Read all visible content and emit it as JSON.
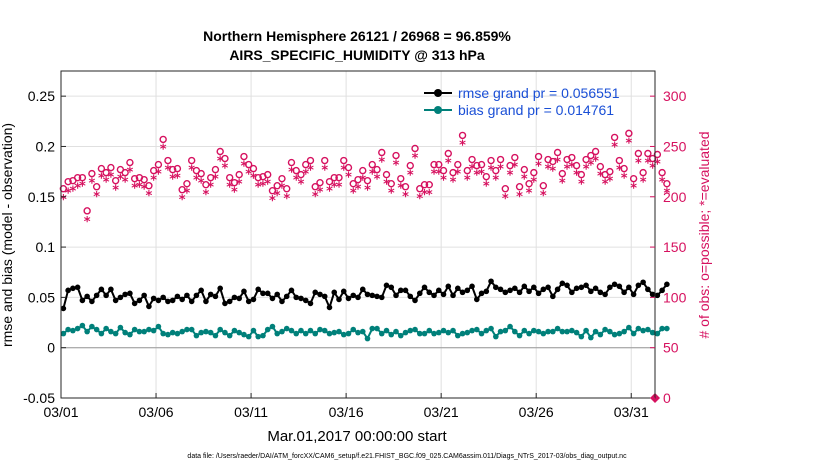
{
  "chart_data": {
    "type": "line",
    "title_line1": "Northern Hemisphere 26121 / 26968 = 96.859%",
    "title_line2": "AIRS_SPECIFIC_HUMIDITY @ 313 hPa",
    "xlabel": "Mar.01,2017 00:00:00 start",
    "ylabel_left": "rmse and bias (model - observation)",
    "ylabel_right": "# of obs: o=possible; *=evaluated",
    "footer": "data file: /Users/raeder/DAI/ATM_forcXX/CAM6_setup/f.e21.FHIST_BGC.f09_025.CAM6assim.011/Diags_NTrS_2017-03/obs_diag_output.nc",
    "x_ticks": [
      "03/01",
      "03/06",
      "03/11",
      "03/16",
      "03/21",
      "03/26",
      "03/31"
    ],
    "x_tick_days": [
      0,
      5,
      10,
      15,
      20,
      25,
      30
    ],
    "xlim": [
      0,
      31.25
    ],
    "y_left_ticks": [
      "-0.05",
      "0",
      "0.05",
      "0.1",
      "0.15",
      "0.2",
      "0.25"
    ],
    "ylim_left": [
      -0.05,
      0.275
    ],
    "y_right_ticks": [
      "0",
      "50",
      "100",
      "150",
      "200",
      "250",
      "300"
    ],
    "ylim_right": [
      0,
      325
    ],
    "legend": {
      "rmse_label": "rmse grand pr = 0.056551",
      "bias_label": "bias grand pr = 0.014761",
      "position": "top-right"
    },
    "colors": {
      "rmse": "#000000",
      "bias": "#00807a",
      "obs": "#d6115f",
      "zero_line": "#999999",
      "grid": "#e0e0e0",
      "legend_text": "#1a4fd6"
    },
    "time_step_days": 0.25,
    "series": [
      {
        "name": "rmse",
        "values": [
          0.039,
          0.057,
          0.059,
          0.06,
          0.047,
          0.051,
          0.046,
          0.052,
          0.058,
          0.052,
          0.058,
          0.047,
          0.05,
          0.053,
          0.054,
          0.044,
          0.047,
          0.052,
          0.041,
          0.049,
          0.047,
          0.05,
          0.046,
          0.047,
          0.051,
          0.048,
          0.052,
          0.046,
          0.052,
          0.057,
          0.046,
          0.053,
          0.051,
          0.059,
          0.044,
          0.046,
          0.05,
          0.049,
          0.056,
          0.046,
          0.048,
          0.058,
          0.054,
          0.054,
          0.049,
          0.053,
          0.046,
          0.051,
          0.057,
          0.05,
          0.049,
          0.047,
          0.044,
          0.055,
          0.053,
          0.051,
          0.04,
          0.055,
          0.048,
          0.056,
          0.049,
          0.052,
          0.05,
          0.058,
          0.053,
          0.052,
          0.051,
          0.05,
          0.062,
          0.06,
          0.052,
          0.057,
          0.057,
          0.051,
          0.047,
          0.054,
          0.06,
          0.055,
          0.052,
          0.057,
          0.053,
          0.061,
          0.052,
          0.059,
          0.055,
          0.057,
          0.061,
          0.048,
          0.054,
          0.056,
          0.066,
          0.06,
          0.058,
          0.055,
          0.057,
          0.059,
          0.055,
          0.061,
          0.056,
          0.06,
          0.054,
          0.058,
          0.06,
          0.051,
          0.058,
          0.064,
          0.062,
          0.055,
          0.059,
          0.06,
          0.062,
          0.056,
          0.059,
          0.055,
          0.053,
          0.06,
          0.063,
          0.061,
          0.055,
          0.06,
          0.053,
          0.062,
          0.065,
          0.058,
          0.053,
          0.052,
          0.057,
          0.063
        ]
      },
      {
        "name": "bias",
        "values": [
          0.014,
          0.018,
          0.017,
          0.019,
          0.022,
          0.016,
          0.021,
          0.018,
          0.014,
          0.019,
          0.016,
          0.014,
          0.02,
          0.015,
          0.013,
          0.018,
          0.016,
          0.016,
          0.018,
          0.017,
          0.021,
          0.014,
          0.013,
          0.015,
          0.014,
          0.016,
          0.018,
          0.018,
          0.012,
          0.015,
          0.016,
          0.015,
          0.012,
          0.018,
          0.015,
          0.012,
          0.017,
          0.015,
          0.013,
          0.011,
          0.017,
          0.011,
          0.012,
          0.018,
          0.021,
          0.014,
          0.016,
          0.019,
          0.017,
          0.014,
          0.017,
          0.014,
          0.017,
          0.014,
          0.018,
          0.017,
          0.014,
          0.015,
          0.016,
          0.013,
          0.014,
          0.018,
          0.015,
          0.016,
          0.009,
          0.019,
          0.019,
          0.014,
          0.017,
          0.013,
          0.016,
          0.012,
          0.015,
          0.017,
          0.018,
          0.014,
          0.014,
          0.017,
          0.014,
          0.015,
          0.017,
          0.015,
          0.017,
          0.012,
          0.014,
          0.015,
          0.017,
          0.018,
          0.014,
          0.017,
          0.019,
          0.011,
          0.016,
          0.017,
          0.021,
          0.016,
          0.012,
          0.017,
          0.014,
          0.017,
          0.016,
          0.014,
          0.016,
          0.016,
          0.019,
          0.016,
          0.016,
          0.017,
          0.015,
          0.011,
          0.017,
          0.01,
          0.016,
          0.013,
          0.018,
          0.016,
          0.013,
          0.014,
          0.016,
          0.02,
          0.014,
          0.019,
          0.017,
          0.018,
          0.015,
          0.014,
          0.019,
          0.019
        ]
      },
      {
        "name": "obs_possible",
        "values": [
          208,
          215,
          216,
          219,
          219,
          186,
          223,
          210,
          228,
          224,
          229,
          216,
          227,
          224,
          234,
          218,
          219,
          217,
          211,
          226,
          232,
          257,
          236,
          227,
          228,
          207,
          213,
          236,
          226,
          223,
          212,
          219,
          227,
          245,
          238,
          219,
          214,
          222,
          240,
          232,
          228,
          219,
          220,
          222,
          206,
          211,
          218,
          208,
          234,
          226,
          222,
          232,
          236,
          210,
          214,
          236,
          215,
          219,
          219,
          236,
          229,
          213,
          217,
          226,
          216,
          232,
          227,
          244,
          222,
          213,
          241,
          218,
          210,
          231,
          248,
          208,
          212,
          212,
          232,
          232,
          226,
          243,
          224,
          232,
          261,
          226,
          237,
          231,
          232,
          220,
          236,
          226,
          237,
          208,
          231,
          239,
          210,
          227,
          213,
          224,
          240,
          211,
          237,
          235,
          244,
          223,
          237,
          239,
          231,
          222,
          237,
          241,
          245,
          230,
          222,
          225,
          259,
          236,
          228,
          263,
          218,
          243,
          224,
          243,
          238,
          242,
          224,
          213
        ]
      },
      {
        "name": "obs_evaluated",
        "values": [
          198,
          204,
          206,
          209,
          211,
          176,
          214,
          201,
          219,
          215,
          220,
          207,
          218,
          215,
          225,
          209,
          210,
          208,
          202,
          217,
          223,
          248,
          227,
          218,
          219,
          198,
          204,
          227,
          217,
          214,
          203,
          210,
          218,
          236,
          229,
          210,
          205,
          213,
          231,
          223,
          219,
          210,
          211,
          213,
          197,
          202,
          209,
          199,
          225,
          217,
          213,
          223,
          227,
          201,
          205,
          227,
          206,
          210,
          210,
          227,
          220,
          204,
          208,
          217,
          207,
          223,
          218,
          235,
          213,
          204,
          232,
          209,
          201,
          222,
          239,
          199,
          203,
          203,
          223,
          223,
          217,
          234,
          215,
          223,
          252,
          217,
          228,
          222,
          223,
          211,
          227,
          217,
          228,
          199,
          222,
          230,
          201,
          218,
          204,
          215,
          231,
          202,
          228,
          226,
          235,
          214,
          228,
          230,
          222,
          213,
          228,
          232,
          236,
          221,
          213,
          216,
          250,
          227,
          219,
          254,
          209,
          234,
          215,
          234,
          229,
          233,
          215,
          204
        ]
      }
    ]
  }
}
